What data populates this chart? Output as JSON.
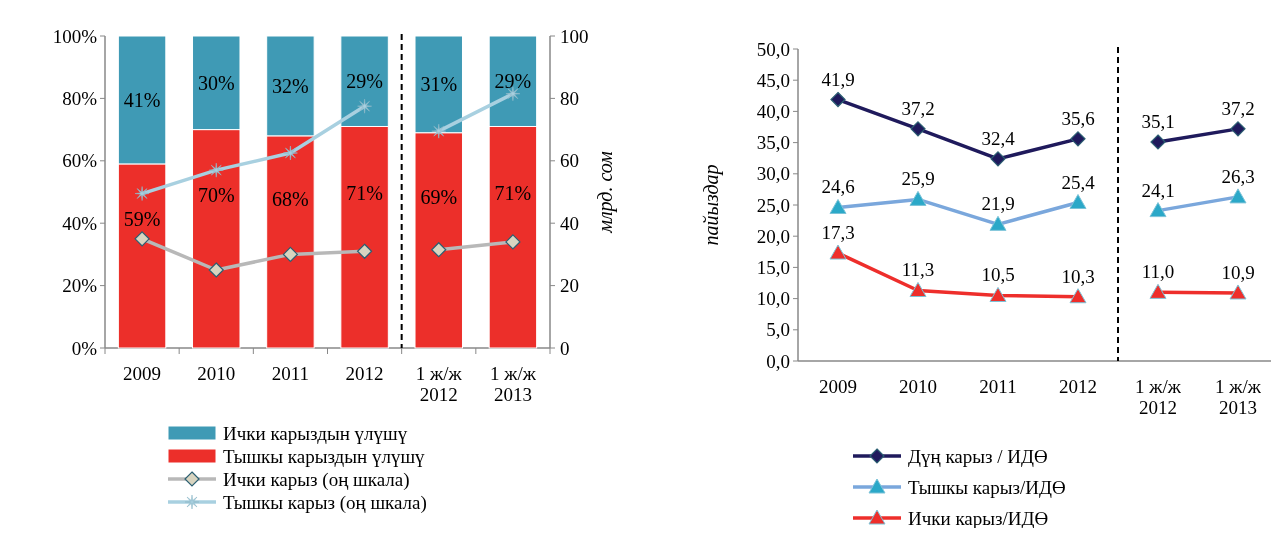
{
  "chart_data": [
    {
      "type": "bar",
      "stacked": true,
      "categories": [
        "2009",
        "2010",
        "2011",
        "2012",
        "1 ж/ж\n2012",
        "1 ж/ж\n2013"
      ],
      "y2label": "млрд. сом",
      "ylim": [
        0,
        100
      ],
      "yticks": [
        {
          "value": 0,
          "label": "0%"
        },
        {
          "value": 20,
          "label": "20%"
        },
        {
          "value": 40,
          "label": "40%"
        },
        {
          "value": 60,
          "label": "60%"
        },
        {
          "value": 80,
          "label": "80%"
        },
        {
          "value": 100,
          "label": "100%"
        }
      ],
      "y2lim": [
        0,
        100
      ],
      "y2ticks": [
        0,
        20,
        40,
        60,
        80,
        100
      ],
      "legend": "bottom",
      "series": [
        {
          "name": "Тышкы карыздын үлүшү",
          "color": "#ec2f2a",
          "values": [
            59,
            70,
            68,
            71,
            69,
            71
          ],
          "value_labels": [
            "59%",
            "70%",
            "68%",
            "71%",
            "69%",
            "71%"
          ]
        },
        {
          "name": "Ички карыздын үлүшү",
          "color": "#3f9ab5",
          "values": [
            41,
            30,
            32,
            29,
            31,
            29
          ],
          "value_labels": [
            "41%",
            "30%",
            "32%",
            "29%",
            "31%",
            "29%"
          ]
        },
        {
          "name": "Ички карыз (оң шкала)",
          "type": "line",
          "axis": "y2",
          "marker": "diamond",
          "color": "#b8b8b8",
          "values": [
            35,
            25,
            30,
            31,
            31.5,
            34
          ]
        },
        {
          "name": "Тышкы карыз (оң шкала)",
          "type": "line",
          "axis": "y2",
          "marker": "star",
          "color": "#a8d0e0",
          "values": [
            49.5,
            57,
            62.5,
            77.5,
            69.5,
            81.5
          ]
        }
      ]
    },
    {
      "type": "line",
      "categories": [
        "2009",
        "2010",
        "2011",
        "2012",
        "1 ж/ж\n2012",
        "1 ж/ж\n2013"
      ],
      "ylabel": "пайыздар",
      "ylim": [
        0,
        50
      ],
      "yticks": [
        {
          "value": 0,
          "label": "0,0"
        },
        {
          "value": 5,
          "label": "5,0"
        },
        {
          "value": 10,
          "label": "10,0"
        },
        {
          "value": 15,
          "label": "15,0"
        },
        {
          "value": 20,
          "label": "20,0"
        },
        {
          "value": 25,
          "label": "25,0"
        },
        {
          "value": 30,
          "label": "30,0"
        },
        {
          "value": 35,
          "label": "35,0"
        },
        {
          "value": 40,
          "label": "40,0"
        },
        {
          "value": 45,
          "label": "45,0"
        },
        {
          "value": 50,
          "label": "50,0"
        }
      ],
      "legend": "bottom",
      "series": [
        {
          "name": "Дүң карыз / ИДӨ",
          "marker": "diamond",
          "color": "#1f1a5c",
          "values": [
            41.9,
            37.2,
            32.4,
            35.6,
            35.1,
            37.2
          ],
          "value_labels": [
            "41,9",
            "37,2",
            "32,4",
            "35,6",
            "35,1",
            "37,2"
          ]
        },
        {
          "name": "Тышкы карыз/ИДӨ",
          "marker": "triangle",
          "color": "#7aa7dc",
          "values": [
            24.6,
            25.9,
            21.9,
            25.4,
            24.1,
            26.3
          ],
          "value_labels": [
            "24,6",
            "25,9",
            "21,9",
            "25,4",
            "24,1",
            "26,3"
          ]
        },
        {
          "name": "Ички карыз/ИДӨ",
          "marker": "triangle",
          "color": "#ee2e2b",
          "values": [
            17.3,
            11.3,
            10.5,
            10.3,
            11.0,
            10.9
          ],
          "value_labels": [
            "17,3",
            "11,3",
            "10,5",
            "10,3",
            "11,0",
            "10,9"
          ]
        }
      ]
    }
  ]
}
